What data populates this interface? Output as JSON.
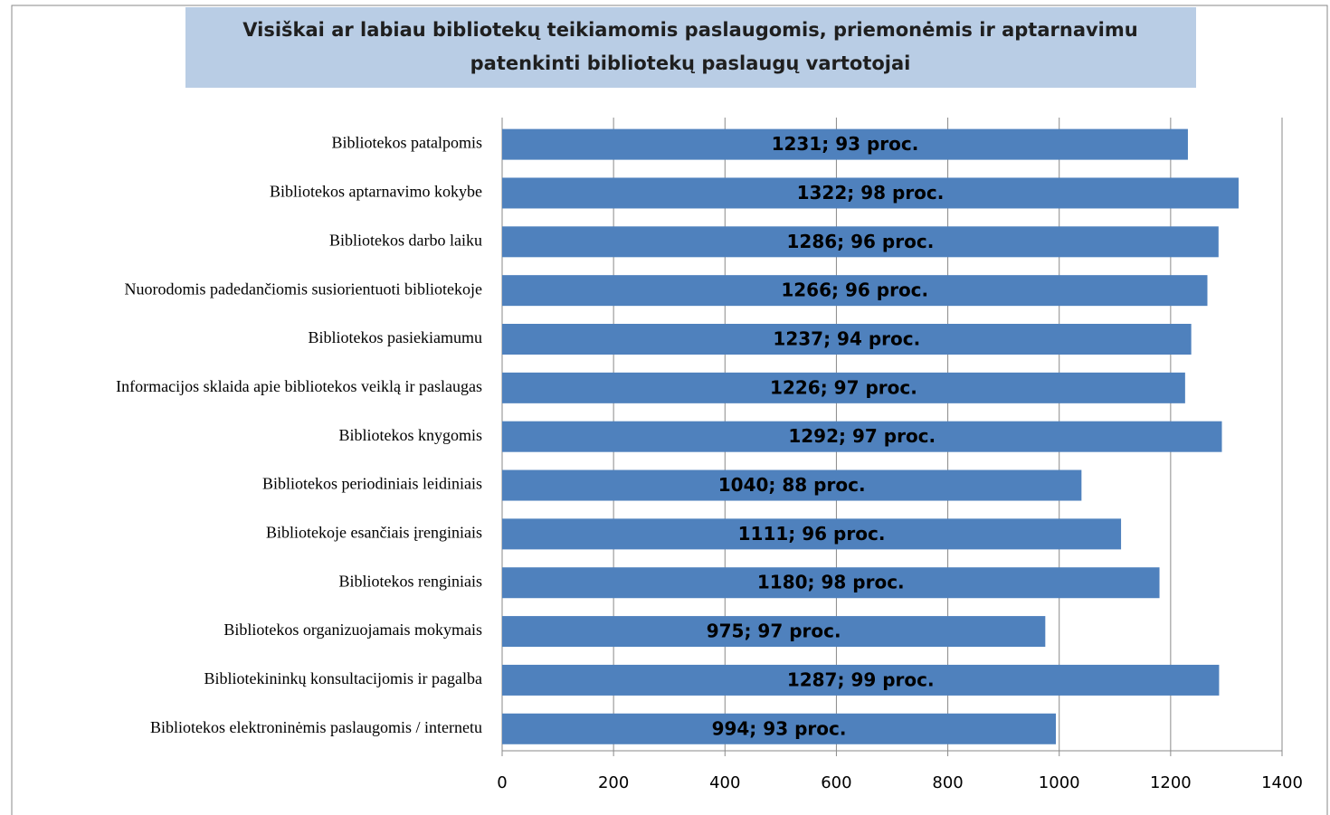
{
  "chart_data": {
    "type": "bar",
    "horizontal": true,
    "title": [
      "Visiškai ar labiau bibliotekų teikiamomis paslaugomis, priemonėmis ir aptarnavimu",
      "patenkinti bibliotekų paslaugų vartotojai"
    ],
    "categories": [
      "Bibliotekos patalpomis",
      "Bibliotekos aptarnavimo kokybe",
      "Bibliotekos darbo laiku",
      "Nuorodomis padedančiomis susiorientuoti bibliotekoje",
      "Bibliotekos pasiekiamumu",
      "Informacijos sklaida apie bibliotekos veiklą ir paslaugas",
      "Bibliotekos knygomis",
      "Bibliotekos periodiniais leidiniais",
      "Bibliotekoje esančiais įrenginiais",
      "Bibliotekos renginiais",
      "Bibliotekos organizuojamais mokymais",
      "Bibliotekininkų konsultacijomis ir pagalba",
      "Bibliotekos elektroninėmis paslaugomis / internetu"
    ],
    "values": [
      1231,
      1322,
      1286,
      1266,
      1237,
      1226,
      1292,
      1040,
      1111,
      1180,
      975,
      1287,
      994
    ],
    "value_labels": [
      "1231; 93 proc.",
      "1322; 98 proc.",
      "1286; 96 proc.",
      "1266; 96 proc.",
      "1237; 94 proc.",
      "1226; 97 proc.",
      "1292; 97 proc.",
      "1040; 88 proc.",
      "1111; 96 proc.",
      "1180; 98 proc.",
      "975; 97 proc.",
      "1287; 99 proc.",
      "994; 93 proc."
    ],
    "color": "#4f81bd",
    "xlim": [
      0,
      1400
    ],
    "xticks": [
      0,
      200,
      400,
      600,
      800,
      1000,
      1200,
      1400
    ],
    "grid": true
  }
}
